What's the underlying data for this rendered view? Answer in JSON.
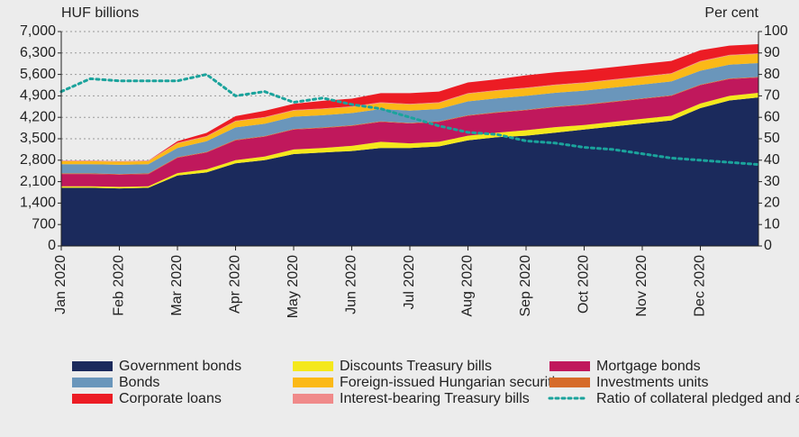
{
  "chart_data": {
    "type": "stacked_area_line",
    "y_label": "HUF billions",
    "y2_label": "Per cent",
    "categories": [
      "Jan 2020",
      null,
      "Feb 2020",
      null,
      "Mar 2020",
      null,
      "Apr 2020",
      null,
      "May 2020",
      null,
      "Jun 2020",
      null,
      "Jul 2020",
      null,
      "Aug 2020",
      null,
      "Sep 2020",
      null,
      "Oct 2020",
      null,
      "Nov 2020",
      null,
      "Dec 2020",
      null,
      null
    ],
    "series": [
      {
        "name": "Government bonds",
        "color": "#1b2a5c",
        "values": [
          1900,
          1900,
          1880,
          1900,
          2300,
          2400,
          2700,
          2800,
          3000,
          3050,
          3100,
          3200,
          3200,
          3250,
          3450,
          3550,
          3600,
          3700,
          3800,
          3900,
          4000,
          4100,
          4500,
          4750,
          4850
        ]
      },
      {
        "name": "Discounts Treasury bills",
        "color": "#f4e81c",
        "values": [
          50,
          50,
          50,
          50,
          80,
          100,
          100,
          120,
          150,
          150,
          170,
          200,
          150,
          150,
          150,
          150,
          180,
          180,
          150,
          150,
          150,
          150,
          150,
          150,
          150
        ]
      },
      {
        "name": "Mortgage bonds",
        "color": "#c0185c",
        "values": [
          400,
          400,
          400,
          400,
          500,
          550,
          650,
          650,
          650,
          650,
          650,
          650,
          650,
          650,
          650,
          650,
          650,
          650,
          650,
          650,
          650,
          650,
          600,
          550,
          500
        ]
      },
      {
        "name": "Investments units",
        "color": "#d66b2a",
        "values": [
          20,
          20,
          20,
          20,
          20,
          20,
          20,
          20,
          20,
          20,
          20,
          20,
          20,
          20,
          20,
          20,
          20,
          20,
          20,
          20,
          20,
          20,
          20,
          20,
          20
        ]
      },
      {
        "name": "Bonds",
        "color": "#6a96bb",
        "values": [
          300,
          300,
          300,
          300,
          300,
          350,
          400,
          400,
          400,
          400,
          400,
          400,
          400,
          400,
          450,
          450,
          450,
          450,
          450,
          450,
          450,
          450,
          450,
          450,
          450
        ]
      },
      {
        "name": "Foreign-issued Hungarian securities",
        "color": "#fbb917",
        "values": [
          100,
          100,
          100,
          100,
          150,
          150,
          200,
          200,
          200,
          200,
          200,
          200,
          200,
          200,
          250,
          250,
          250,
          250,
          250,
          250,
          250,
          250,
          300,
          300,
          300
        ]
      },
      {
        "name": "Interest-bearing Treasury bills",
        "color": "#f08a8a",
        "values": [
          20,
          20,
          20,
          20,
          20,
          20,
          20,
          20,
          20,
          20,
          20,
          20,
          20,
          20,
          20,
          20,
          20,
          20,
          20,
          20,
          20,
          20,
          20,
          20,
          20
        ]
      },
      {
        "name": "Corporate loans",
        "color": "#ec1c24",
        "values": [
          0,
          0,
          0,
          0,
          50,
          100,
          150,
          200,
          200,
          250,
          250,
          300,
          350,
          350,
          350,
          350,
          400,
          400,
          400,
          400,
          400,
          400,
          350,
          300,
          300
        ]
      },
      {
        "name": "Ratio of collateral pledged and available as intraday credit line (RHS)",
        "color": "#1ba39c",
        "axis": "y2",
        "values": [
          72,
          78,
          77,
          77,
          77,
          80,
          70,
          72,
          67,
          69,
          66,
          64,
          60,
          56,
          53,
          52,
          49,
          48,
          46,
          45,
          43,
          41,
          40,
          39,
          38
        ]
      }
    ],
    "ylim": [
      0,
      7000
    ],
    "yticks": [
      0,
      700,
      {
        "value": 1400,
        "label": "1,400"
      },
      {
        "value": 2100,
        "label": "2,100"
      },
      {
        "value": 2800,
        "label": "2,800"
      },
      {
        "value": 3500,
        "label": "3,500"
      },
      {
        "value": 4200,
        "label": "4,200"
      },
      {
        "value": 4900,
        "label": "4,900"
      },
      {
        "value": 5600,
        "label": "5,600"
      },
      {
        "value": 6300,
        "label": "6,300"
      },
      {
        "value": 7000,
        "label": "7,000"
      }
    ],
    "y2lim": [
      0,
      100
    ],
    "y2ticks": [
      0,
      10,
      20,
      30,
      40,
      50,
      60,
      70,
      80,
      90,
      100
    ],
    "grid": true
  }
}
